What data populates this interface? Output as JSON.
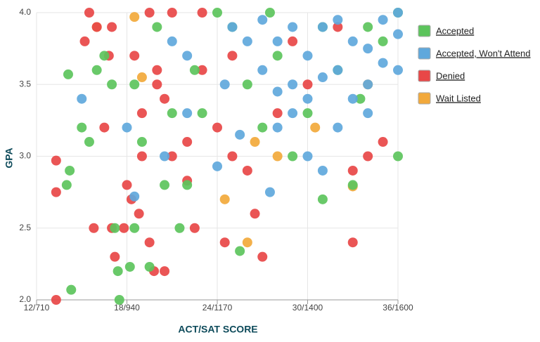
{
  "chart_data": {
    "type": "scatter",
    "x_label": "ACT/SAT SCORE",
    "y_label": "GPA",
    "xlim": [
      12,
      36
    ],
    "ylim": [
      2.0,
      4.0
    ],
    "xticks": [
      {
        "value": 12,
        "label": "12/710"
      },
      {
        "value": 18,
        "label": "18/940"
      },
      {
        "value": 24,
        "label": "24/1170"
      },
      {
        "value": 30,
        "label": "30/1400"
      },
      {
        "value": 36,
        "label": "36/1600"
      }
    ],
    "yticks": [
      {
        "value": 2,
        "label": "2.0"
      },
      2.5,
      {
        "value": 3,
        "label": "3.0"
      },
      3.5,
      {
        "value": 4,
        "label": "4.0"
      }
    ],
    "grid": true,
    "legend_position": "right",
    "series": [
      {
        "name": "Accepted",
        "color": "#5cc45c",
        "x": [
          14.3,
          14.2,
          14,
          14.1,
          15,
          15.5,
          16,
          17.2,
          17.4,
          18.2,
          17.5,
          18.5,
          19.5,
          20.5,
          21.5,
          22,
          23,
          24,
          25,
          25.5,
          26,
          27,
          28,
          29,
          30,
          31,
          32,
          33,
          34,
          35,
          36,
          36,
          16.5,
          17,
          18.5,
          19,
          20,
          21,
          22.5,
          27.5,
          31,
          33.5
        ],
        "values": [
          2.07,
          2.9,
          2.8,
          3.57,
          3.2,
          3.1,
          3.6,
          2.5,
          2.2,
          2.23,
          2.0,
          2.5,
          2.23,
          2.8,
          2.5,
          2.8,
          3.3,
          4.0,
          3.9,
          2.34,
          3.5,
          3.2,
          3.7,
          3.0,
          3.3,
          2.7,
          3.6,
          2.8,
          3.9,
          3.8,
          3.0,
          4.0,
          3.7,
          3.5,
          3.5,
          3.1,
          3.9,
          3.3,
          3.6,
          4.0,
          3.9,
          3.4
        ]
      },
      {
        "name": "Accepted, Won't Attend",
        "color": "#5fa8dc",
        "x": [
          15,
          18,
          18.5,
          20.5,
          22,
          24,
          25.5,
          27.5,
          28,
          29,
          30,
          31,
          32,
          34,
          36,
          36,
          36,
          27,
          28,
          29,
          30,
          31,
          32,
          33,
          34,
          35,
          26,
          27,
          28,
          29,
          30,
          31,
          32,
          33,
          34,
          35,
          21,
          22,
          24.5,
          25
        ],
        "values": [
          3.4,
          3.2,
          2.72,
          3.0,
          3.3,
          2.93,
          3.15,
          2.75,
          3.2,
          3.3,
          3.0,
          2.9,
          3.2,
          3.3,
          3.6,
          3.85,
          4.0,
          3.6,
          3.8,
          3.5,
          3.7,
          3.9,
          3.6,
          3.8,
          3.5,
          3.95,
          3.8,
          3.95,
          3.45,
          3.9,
          3.4,
          3.55,
          3.95,
          3.4,
          3.75,
          3.65,
          3.8,
          3.7,
          3.5,
          3.9
        ]
      },
      {
        "name": "Denied",
        "color": "#e84747",
        "x": [
          13.3,
          13.3,
          13.3,
          15.2,
          15.5,
          16,
          15.8,
          17,
          17.2,
          17.8,
          18,
          18.3,
          18.8,
          19.5,
          19.8,
          20.5,
          19,
          20,
          21,
          22,
          22.5,
          23,
          24,
          24.5,
          25,
          26,
          26.5,
          27,
          28,
          29,
          30,
          32,
          33,
          33,
          34,
          35,
          19.5,
          21,
          23,
          18.5,
          20,
          22,
          25,
          16.5,
          17,
          16.8,
          19,
          20.5
        ],
        "values": [
          2.0,
          2.75,
          2.97,
          3.8,
          4.0,
          3.9,
          2.5,
          2.5,
          2.3,
          2.5,
          2.8,
          2.7,
          2.6,
          2.4,
          2.2,
          2.2,
          3.3,
          3.5,
          3.0,
          2.83,
          2.5,
          3.6,
          3.2,
          2.4,
          3.0,
          2.9,
          2.6,
          2.3,
          3.3,
          3.8,
          3.5,
          3.9,
          2.9,
          2.4,
          3.0,
          3.1,
          4.0,
          4.0,
          4.0,
          3.7,
          3.6,
          3.1,
          3.7,
          3.2,
          3.9,
          3.7,
          3.0,
          3.4
        ]
      },
      {
        "name": "Wait Listed",
        "color": "#f2a93b",
        "x": [
          18.5,
          16,
          24.5,
          26,
          28,
          33,
          34,
          19,
          30.5,
          26.5
        ],
        "values": [
          3.97,
          3.9,
          2.7,
          2.4,
          3.0,
          2.79,
          3.5,
          3.55,
          3.2,
          3.1
        ]
      }
    ]
  }
}
